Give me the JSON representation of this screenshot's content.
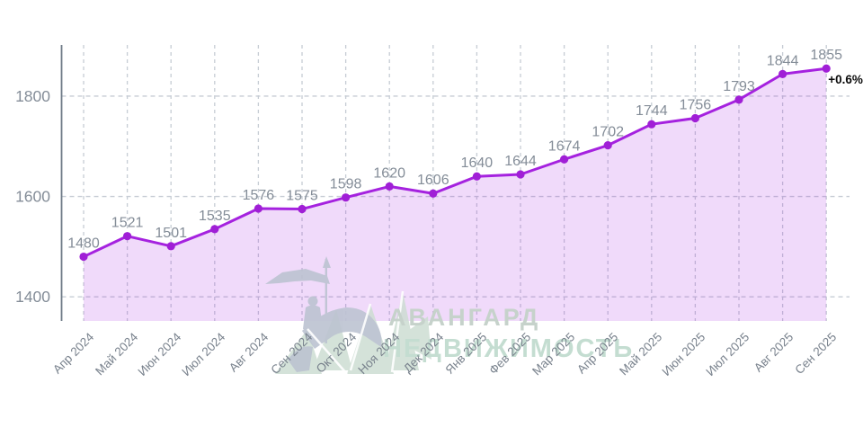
{
  "watermark": {
    "line1": "АВАНГАРД",
    "line2": "НЕДВИЖИМОСТЬ",
    "logo": "horseman-statue-logo"
  },
  "annotation": {
    "change_label": "+0.6%"
  },
  "colors": {
    "line": "#a522df",
    "marker": "#a01fd6",
    "fill_rgba": "rgba(165,34,224,0.17)",
    "grid": "#c6ccd4",
    "axis": "#6e7a87",
    "value_label": "#848d98",
    "tick_label": "#79828d",
    "annotation_text": "#0b0b0b",
    "watermark_gray": "#bcc3d1",
    "watermark_teal": "#cdddd3"
  },
  "chart_data": {
    "type": "area",
    "title": "",
    "xlabel": "",
    "ylabel": "",
    "categories": [
      "Апр 2024",
      "Май 2024",
      "Июн 2024",
      "Июл 2024",
      "Авг 2024",
      "Сен 2024",
      "Окт 2024",
      "Ноя 2024",
      "Дек 2024",
      "Янв 2025",
      "Фев 2025",
      "Мар 2025",
      "Апр 2025",
      "Май 2025",
      "Июн 2025",
      "Июл 2025",
      "Авг 2025",
      "Сен 2025"
    ],
    "values": [
      1480,
      1521,
      1501,
      1535,
      1576,
      1575,
      1598,
      1620,
      1606,
      1640,
      1644,
      1674,
      1702,
      1744,
      1756,
      1793,
      1844,
      1855
    ],
    "yticks": [
      1400,
      1600,
      1800
    ],
    "ylim": [
      1352,
      1902
    ],
    "grid": true,
    "legend": "none",
    "point_labels_shown": true,
    "last_point_annotation": "+0.6%"
  }
}
